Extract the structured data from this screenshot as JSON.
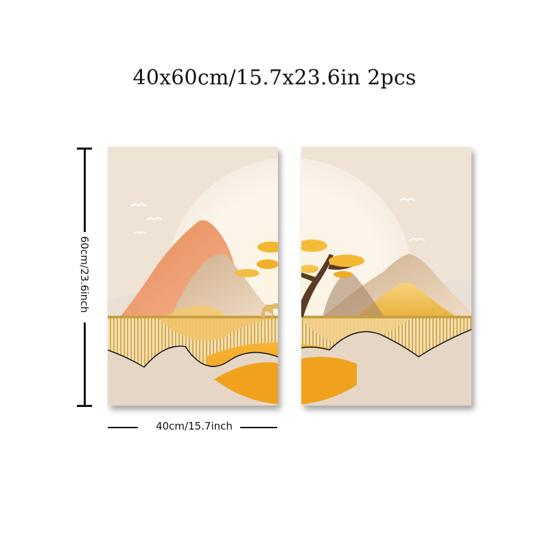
{
  "product": {
    "size_title": "40x60cm/15.7x23.6in 2pcs",
    "height_label": "60cm/23.6inch",
    "width_label": "40cm/15.7inch",
    "panel_count": 2
  },
  "colors": {
    "background_cream": "#efe3d6",
    "sun_glow": "#fbf6ee",
    "peach_mountain": "#e89a6a",
    "tan_mountain": "#d8bd9c",
    "gold_accent": "#f0b43a",
    "orange_sun": "#f0a21e",
    "lower_band": "#e6d6c6",
    "gold_line": "#c8a042"
  },
  "artwork": {
    "style": "abstract mountain landscape with golden tree, deer and setting sun",
    "icons": [
      "bird-icon",
      "tree-icon",
      "deer-icon",
      "sun-icon",
      "mountain-icon"
    ]
  }
}
